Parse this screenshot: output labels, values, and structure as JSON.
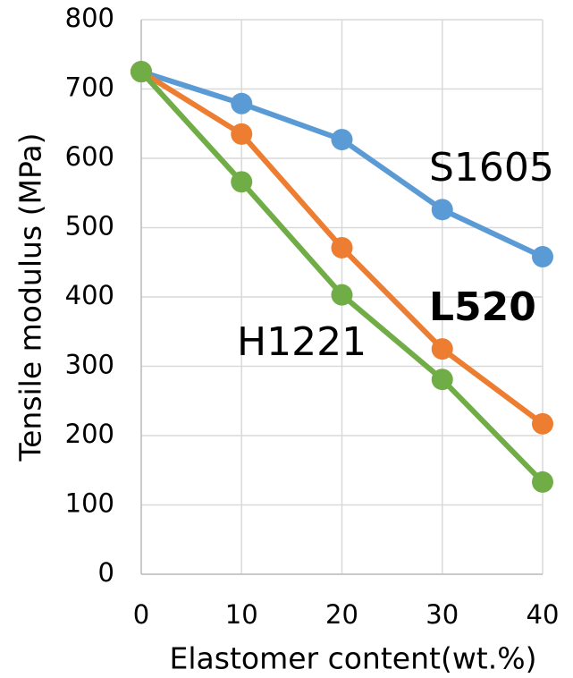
{
  "chart_data": {
    "type": "line",
    "x_label": "Elastomer content(wt.%)",
    "y_label": "Tensile modulus (MPa)",
    "x": [
      0,
      10,
      20,
      30,
      40
    ],
    "series": [
      {
        "name": "S1605",
        "color": "#5b9bd5",
        "values": [
          725,
          679,
          627,
          526,
          458
        ]
      },
      {
        "name": "L520",
        "color": "#ed7d31",
        "values": [
          725,
          635,
          471,
          325,
          217
        ]
      },
      {
        "name": "H1221",
        "color": "#70ad47",
        "values": [
          725,
          566,
          403,
          281,
          133
        ]
      }
    ],
    "xlim": [
      0,
      40
    ],
    "xticks": [
      0,
      10,
      20,
      30,
      40
    ],
    "ylim": [
      0,
      800
    ],
    "yticks": [
      0,
      100,
      200,
      300,
      400,
      500,
      600,
      700,
      800
    ],
    "grid": true
  }
}
